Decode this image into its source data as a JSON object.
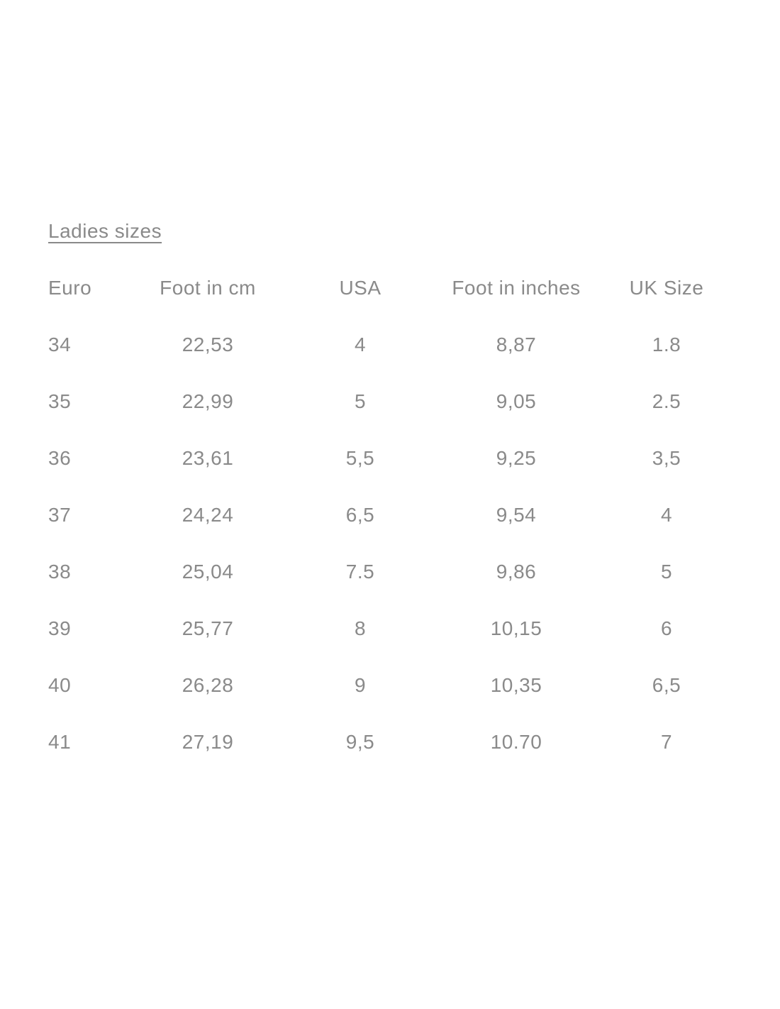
{
  "page": {
    "title": "Ladies sizes"
  },
  "colors": {
    "text": "#8a8a8a",
    "background": "#ffffff"
  },
  "table": {
    "headers": [
      "Euro",
      "Foot in cm",
      "USA",
      "Foot in inches",
      "UK Size"
    ],
    "rows": [
      [
        "34",
        "22,53",
        "4",
        "8,87",
        "1.8"
      ],
      [
        "35",
        "22,99",
        "5",
        "9,05",
        "2.5"
      ],
      [
        "36",
        "23,61",
        "5,5",
        "9,25",
        "3,5"
      ],
      [
        "37",
        "24,24",
        "6,5",
        "9,54",
        "4"
      ],
      [
        "38",
        "25,04",
        "7.5",
        "9,86",
        "5"
      ],
      [
        "39",
        "25,77",
        "8",
        "10,15",
        "6"
      ],
      [
        "40",
        "26,28",
        "9",
        "10,35",
        "6,5"
      ],
      [
        "41",
        "27,19",
        "9,5",
        "10.70",
        "7"
      ]
    ]
  },
  "chart_data": {
    "type": "table",
    "title": "Ladies sizes",
    "columns": [
      "Euro",
      "Foot in cm",
      "USA",
      "Foot in inches",
      "UK Size"
    ],
    "rows": [
      [
        "34",
        "22,53",
        "4",
        "8,87",
        "1.8"
      ],
      [
        "35",
        "22,99",
        "5",
        "9,05",
        "2.5"
      ],
      [
        "36",
        "23,61",
        "5,5",
        "9,25",
        "3,5"
      ],
      [
        "37",
        "24,24",
        "6,5",
        "9,54",
        "4"
      ],
      [
        "38",
        "25,04",
        "7.5",
        "9,86",
        "5"
      ],
      [
        "39",
        "25,77",
        "8",
        "10,15",
        "6"
      ],
      [
        "40",
        "26,28",
        "9",
        "10,35",
        "6,5"
      ],
      [
        "41",
        "27,19",
        "9,5",
        "10.70",
        "7"
      ]
    ]
  }
}
